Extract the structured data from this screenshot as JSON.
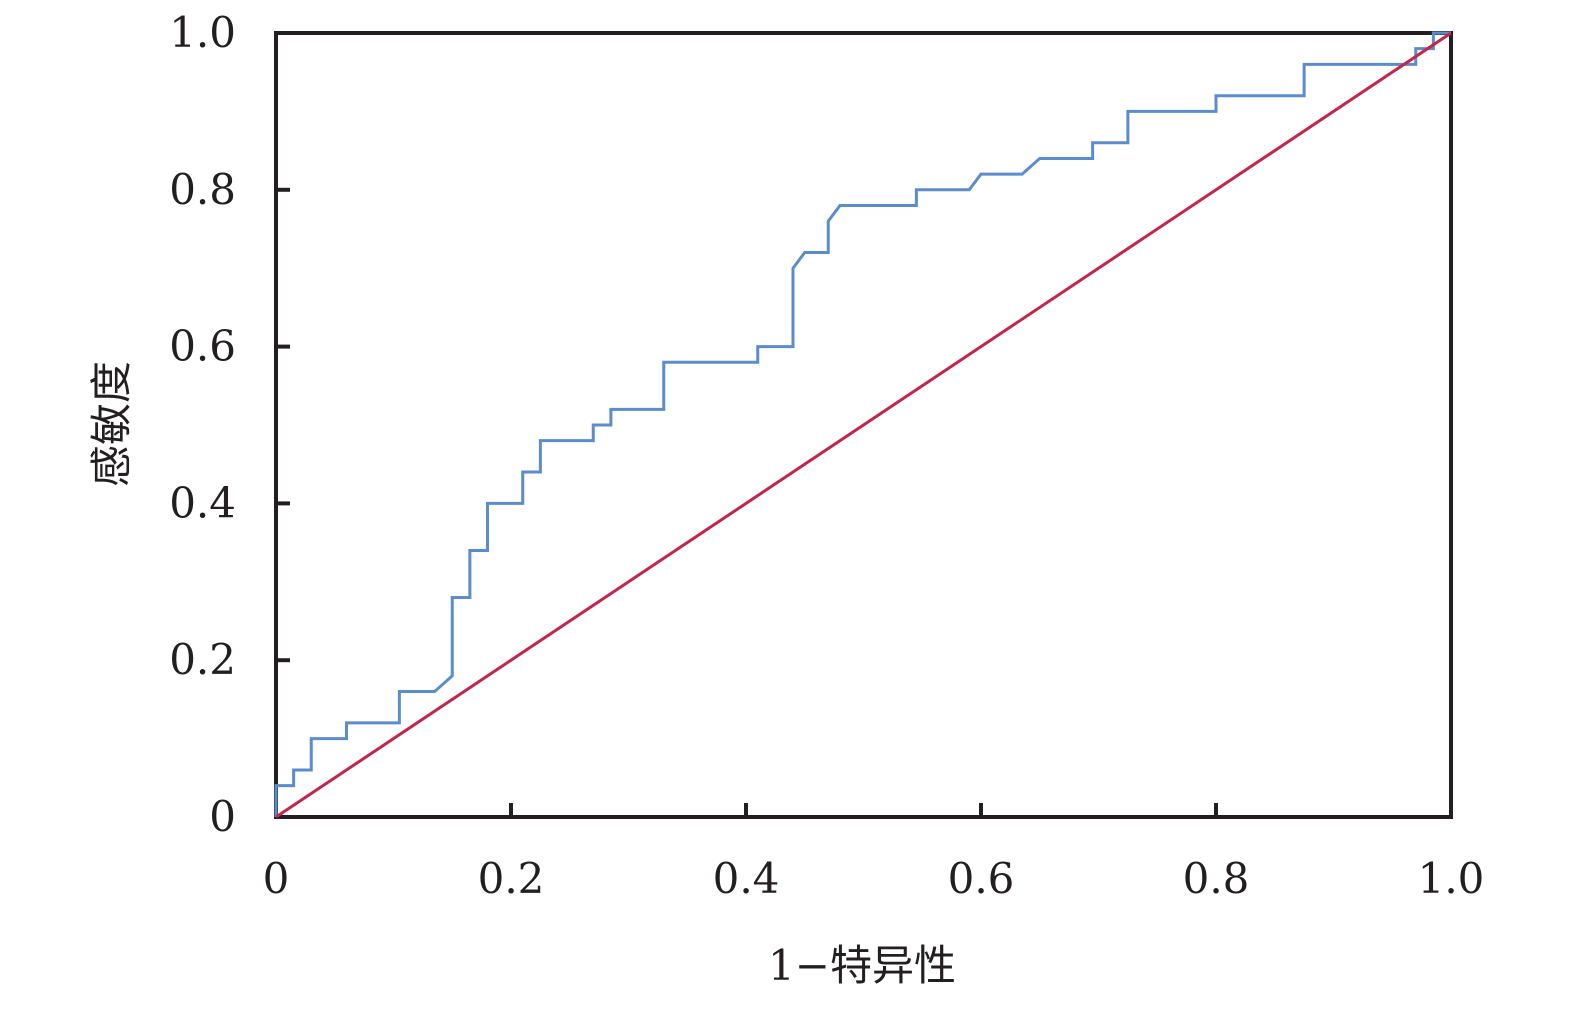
{
  "chart_data": {
    "type": "line",
    "title": "",
    "xlabel": "1−特异性",
    "ylabel": "感敏度",
    "xlim": [
      0,
      1.0
    ],
    "ylim": [
      0,
      1.0
    ],
    "x_ticks": [
      "0",
      "0.2",
      "0.4",
      "0.6",
      "0.8",
      "1.0"
    ],
    "y_ticks": [
      "0",
      "0.2",
      "0.4",
      "0.6",
      "0.8",
      "1.0"
    ],
    "x_tick_values": [
      0,
      0.2,
      0.4,
      0.6,
      0.8,
      1.0
    ],
    "y_tick_values": [
      0,
      0.2,
      0.4,
      0.6,
      0.8,
      1.0
    ],
    "grid": false,
    "legend": "none",
    "series": [
      {
        "color": "#5b8ccb",
        "x": [
          0,
          0,
          0.015,
          0.015,
          0.03,
          0.03,
          0.06,
          0.06,
          0.105,
          0.105,
          0.135,
          0.15,
          0.15,
          0.165,
          0.165,
          0.18,
          0.18,
          0.21,
          0.21,
          0.225,
          0.225,
          0.27,
          0.27,
          0.285,
          0.285,
          0.33,
          0.33,
          0.41,
          0.41,
          0.44,
          0.44,
          0.45,
          0.47,
          0.47,
          0.48,
          0.545,
          0.545,
          0.59,
          0.6,
          0.635,
          0.65,
          0.695,
          0.695,
          0.725,
          0.725,
          0.8,
          0.8,
          0.875,
          0.875,
          0.97,
          0.97,
          0.985,
          0.985,
          1.0
        ],
        "y": [
          0,
          0.04,
          0.04,
          0.06,
          0.06,
          0.1,
          0.1,
          0.12,
          0.12,
          0.16,
          0.16,
          0.18,
          0.28,
          0.28,
          0.34,
          0.34,
          0.4,
          0.4,
          0.44,
          0.44,
          0.48,
          0.48,
          0.5,
          0.5,
          0.52,
          0.52,
          0.58,
          0.58,
          0.6,
          0.6,
          0.7,
          0.72,
          0.72,
          0.76,
          0.78,
          0.78,
          0.8,
          0.8,
          0.82,
          0.82,
          0.84,
          0.84,
          0.86,
          0.86,
          0.9,
          0.9,
          0.92,
          0.92,
          0.96,
          0.96,
          0.98,
          0.98,
          1.0,
          1.0
        ]
      },
      {
        "color": "#c2264a",
        "x": [
          0,
          1.0
        ],
        "y": [
          0,
          1.0
        ]
      }
    ]
  }
}
